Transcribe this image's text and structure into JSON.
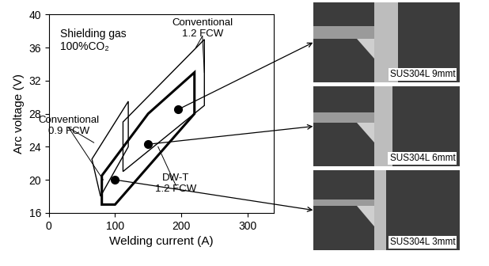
{
  "chart_data": {
    "type": "area",
    "xlabel": "Welding current (A)",
    "ylabel": "Arc voltage (V)",
    "xlim": [
      0,
      340
    ],
    "xticks": [
      0,
      100,
      200,
      300
    ],
    "ylim": [
      16,
      40
    ],
    "yticks": [
      16,
      20,
      24,
      28,
      32,
      36,
      40
    ],
    "annotations": [
      "Shielding gas\n100%CO₂"
    ],
    "series": [
      {
        "name": "Conventional\n0.9 FCW",
        "color": "#000000",
        "line_style": "solid",
        "x": [
          65,
          120,
          120,
          78
        ],
        "y": [
          22.5,
          29.5,
          24,
          18
        ]
      },
      {
        "name": "Conventional\n1.2 FCW",
        "color": "#000000",
        "line_style": "solid",
        "x": [
          112,
          235,
          235,
          112
        ],
        "y": [
          27,
          37,
          29,
          21
        ]
      },
      {
        "name": "DW-T\n1.2 FCW",
        "color": "#000000",
        "line_style": "solid",
        "x": [
          80,
          80,
          150,
          220,
          220,
          100
        ],
        "y": [
          17,
          20.5,
          28,
          33,
          28,
          17
        ]
      }
    ],
    "points": {
      "x": [
        100,
        150,
        195
      ],
      "y": [
        20,
        24.3,
        28.5
      ],
      "marker": "o",
      "color": "#000000",
      "labels": [
        "SUS304L 3mmt",
        "SUS304L 6mmt",
        "SUS304L 9mmt"
      ]
    }
  }
}
